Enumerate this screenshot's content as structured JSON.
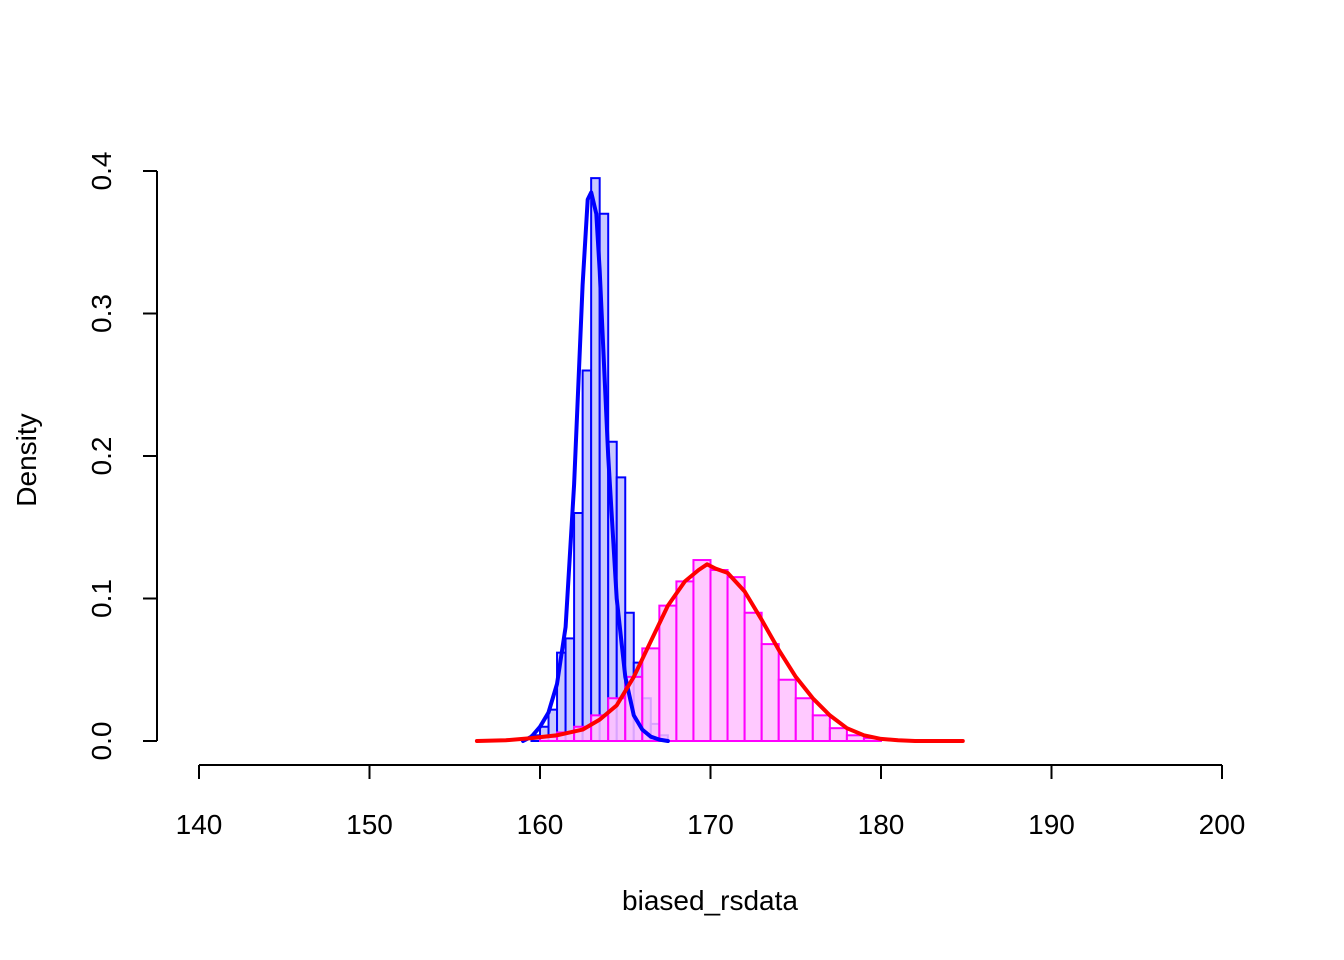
{
  "chart_data": {
    "type": "histogram",
    "xlabel": "biased_rsdata",
    "ylabel": "Density",
    "xlim": [
      140,
      200
    ],
    "ylim": [
      0,
      0.4
    ],
    "x_ticks": [
      "140",
      "150",
      "160",
      "170",
      "180",
      "190",
      "200"
    ],
    "y_ticks": [
      "0.0",
      "0.1",
      "0.2",
      "0.3",
      "0.4"
    ],
    "grid": false,
    "series": [
      {
        "fill_color": "#c8c8ff",
        "stroke_color": "#0000ff",
        "bin_width": 0.5,
        "bins": [
          {
            "x0": 159.5,
            "density": 0.004
          },
          {
            "x0": 160.0,
            "density": 0.01
          },
          {
            "x0": 160.5,
            "density": 0.022
          },
          {
            "x0": 161.0,
            "density": 0.062
          },
          {
            "x0": 161.5,
            "density": 0.072
          },
          {
            "x0": 162.0,
            "density": 0.16
          },
          {
            "x0": 162.5,
            "density": 0.26
          },
          {
            "x0": 163.0,
            "density": 0.395
          },
          {
            "x0": 163.5,
            "density": 0.37
          },
          {
            "x0": 164.0,
            "density": 0.21
          },
          {
            "x0": 164.5,
            "density": 0.185
          },
          {
            "x0": 165.0,
            "density": 0.09
          },
          {
            "x0": 165.5,
            "density": 0.055
          },
          {
            "x0": 166.0,
            "density": 0.03
          },
          {
            "x0": 166.5,
            "density": 0.012
          },
          {
            "x0": 167.0,
            "density": 0.004
          }
        ],
        "density_curve": {
          "color": "#0000ff",
          "x": [
            159.0,
            159.5,
            160.0,
            160.5,
            161.0,
            161.5,
            162.0,
            162.5,
            162.8,
            163.0,
            163.3,
            163.5,
            164.0,
            164.5,
            165.0,
            165.5,
            166.0,
            166.5,
            167.0,
            167.5
          ],
          "y": [
            0.0,
            0.003,
            0.01,
            0.02,
            0.04,
            0.08,
            0.18,
            0.32,
            0.38,
            0.385,
            0.37,
            0.33,
            0.2,
            0.1,
            0.045,
            0.018,
            0.008,
            0.003,
            0.001,
            0.0
          ]
        }
      },
      {
        "fill_color": "#ffc0ff",
        "stroke_color": "#ff00ff",
        "bin_width": 1,
        "bins": [
          {
            "x0": 160,
            "density": 0.003
          },
          {
            "x0": 161,
            "density": 0.006
          },
          {
            "x0": 162,
            "density": 0.01
          },
          {
            "x0": 163,
            "density": 0.018
          },
          {
            "x0": 164,
            "density": 0.03
          },
          {
            "x0": 165,
            "density": 0.045
          },
          {
            "x0": 166,
            "density": 0.065
          },
          {
            "x0": 167,
            "density": 0.095
          },
          {
            "x0": 168,
            "density": 0.112
          },
          {
            "x0": 169,
            "density": 0.127
          },
          {
            "x0": 170,
            "density": 0.12
          },
          {
            "x0": 171,
            "density": 0.115
          },
          {
            "x0": 172,
            "density": 0.09
          },
          {
            "x0": 173,
            "density": 0.068
          },
          {
            "x0": 174,
            "density": 0.043
          },
          {
            "x0": 175,
            "density": 0.03
          },
          {
            "x0": 176,
            "density": 0.018
          },
          {
            "x0": 177,
            "density": 0.009
          },
          {
            "x0": 178,
            "density": 0.004
          },
          {
            "x0": 179,
            "density": 0.002
          }
        ],
        "density_curve": {
          "color": "#ff0000",
          "x": [
            156.3,
            158,
            159.5,
            161,
            162.5,
            163.5,
            164.5,
            165.5,
            166.5,
            167.5,
            168.5,
            169.3,
            169.8,
            170.3,
            171,
            172,
            173,
            174,
            175,
            176,
            177,
            178,
            179,
            180,
            181,
            182,
            184.8
          ],
          "y": [
            0.0,
            0.0005,
            0.002,
            0.004,
            0.008,
            0.015,
            0.025,
            0.045,
            0.07,
            0.095,
            0.112,
            0.12,
            0.124,
            0.121,
            0.118,
            0.105,
            0.085,
            0.064,
            0.045,
            0.03,
            0.018,
            0.009,
            0.004,
            0.0015,
            0.0005,
            0.0,
            0.0
          ]
        }
      }
    ]
  }
}
